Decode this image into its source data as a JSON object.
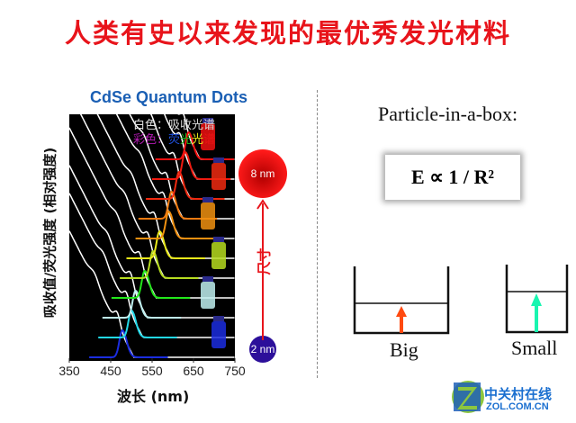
{
  "slide": {
    "title": "人类有史以来发现的最优秀发光材料",
    "particle_in_a_box": "Particle-in-a-box:",
    "formula": "E ∝ 1 / R²",
    "box_labels": [
      "Big",
      "Small"
    ],
    "arrow_colors": {
      "big": "#ff4a10",
      "small": "#19f5b0"
    },
    "watermark": {
      "zh": "中关村在线",
      "en": "ZOL.COM.CN"
    }
  },
  "figure": {
    "title": "CdSe Quantum Dots",
    "legend_white": "白色：吸收光谱",
    "legend_color_prefix": "彩色：",
    "legend_color_chars": [
      "荧",
      "光",
      "光",
      "谱"
    ],
    "legend_color_colors": [
      "#1f4fd8",
      "#1fbf1f",
      "#e8e81a",
      "#e81414"
    ],
    "size_label": "尺寸",
    "size_large": "8 nm",
    "size_small": "2 nm"
  },
  "chart_data": {
    "type": "line",
    "xlabel": "波长 (nm)",
    "ylabel": "吸收值/荧光强度 (相对强度)",
    "xlim": [
      350,
      750
    ],
    "xticks": [
      "350",
      "450",
      "550",
      "650",
      "750"
    ],
    "absorption_color": "#ffffff",
    "emission_peaks_nm": [
      478,
      500,
      510,
      532,
      552,
      568,
      590,
      597,
      615,
      630,
      638
    ],
    "emission_colors": [
      "#1b2de0",
      "#22d8e8",
      "#bff0f0",
      "#22e81a",
      "#b6dc20",
      "#e8e81a",
      "#f09010",
      "#f07a10",
      "#f02a10",
      "#f01a10",
      "#f01010"
    ]
  }
}
